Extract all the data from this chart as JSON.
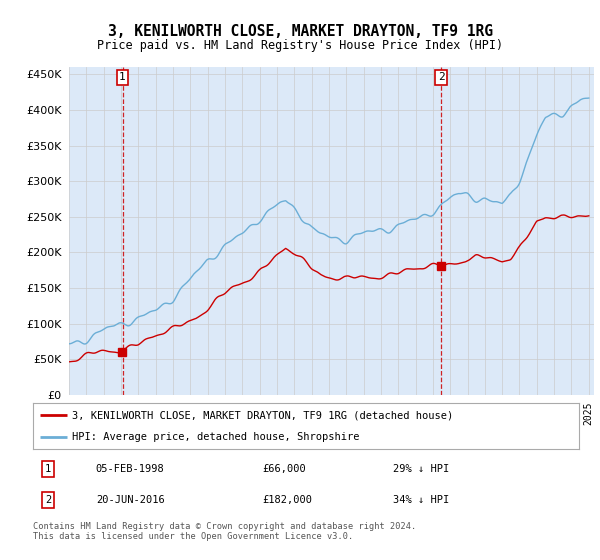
{
  "title": "3, KENILWORTH CLOSE, MARKET DRAYTON, TF9 1RG",
  "subtitle": "Price paid vs. HM Land Registry's House Price Index (HPI)",
  "legend_line1": "3, KENILWORTH CLOSE, MARKET DRAYTON, TF9 1RG (detached house)",
  "legend_line2": "HPI: Average price, detached house, Shropshire",
  "annotation1_date": "05-FEB-1998",
  "annotation1_price": "£66,000",
  "annotation1_hpi": "29% ↓ HPI",
  "annotation2_date": "20-JUN-2016",
  "annotation2_price": "£182,000",
  "annotation2_hpi": "34% ↓ HPI",
  "footer": "Contains HM Land Registry data © Crown copyright and database right 2024.\nThis data is licensed under the Open Government Licence v3.0.",
  "hpi_color": "#6baed6",
  "price_color": "#cc0000",
  "annotation_box_color": "#cc0000",
  "dashed_line_color": "#cc0000",
  "background_color": "#dce9f8",
  "plot_bg_color": "#ffffff",
  "ylim": [
    0,
    460000
  ],
  "yticks": [
    0,
    50000,
    100000,
    150000,
    200000,
    250000,
    300000,
    350000,
    400000,
    450000
  ],
  "sale1_year": 1998.09,
  "sale1_price": 66000,
  "sale2_year": 2016.47,
  "sale2_price": 182000,
  "xlim_start": 1995,
  "xlim_end": 2025.3
}
